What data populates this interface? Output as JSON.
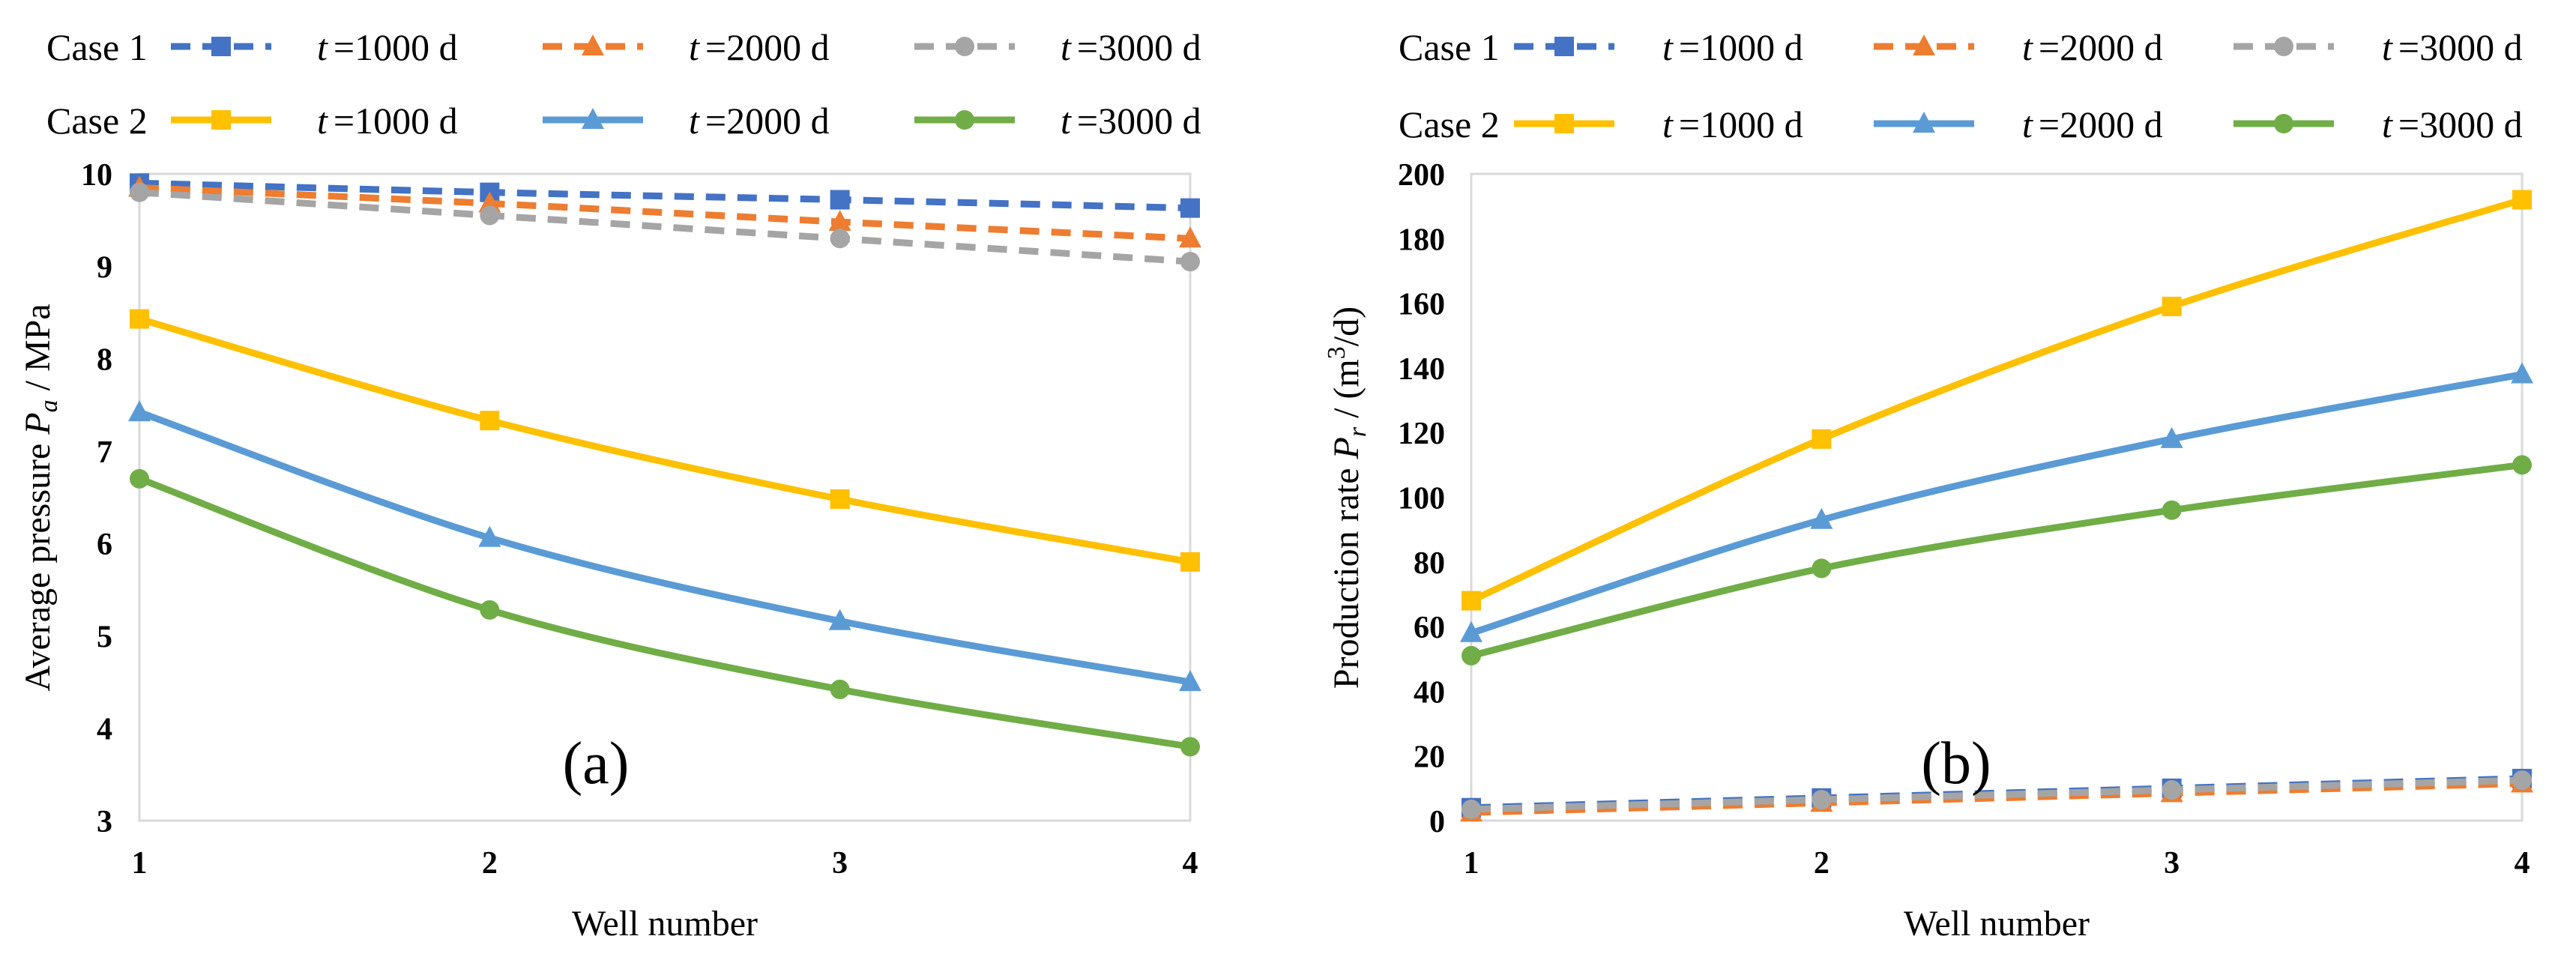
{
  "chart_data": [
    {
      "id": "a",
      "type": "line",
      "panel_label": "(a)",
      "xlabel": "Well number",
      "ylabel": {
        "prefix": "Average pressure ",
        "symbol": "P",
        "sub": "a",
        "suffix": " / MPa"
      },
      "categories": [
        "1",
        "2",
        "3",
        "4"
      ],
      "ylim": [
        3,
        10
      ],
      "yticks": [
        "3",
        "4",
        "5",
        "6",
        "7",
        "8",
        "9",
        "10"
      ],
      "legend": {
        "position": "top",
        "case_labels": [
          "Case 1",
          "Case 2"
        ],
        "time_prefix": "t",
        "time_suffixes": [
          "=1000 d",
          "=2000 d",
          "=3000 d"
        ]
      },
      "series": [
        {
          "name": "Case 1, t =1000 d",
          "case": 1,
          "time": 0,
          "marker": "square",
          "dash": true,
          "color": "#4472C4",
          "values": [
            9.9,
            9.8,
            9.72,
            9.63
          ]
        },
        {
          "name": "Case 1, t =2000 d",
          "case": 1,
          "time": 1,
          "marker": "triangle",
          "dash": true,
          "color": "#ED7D31",
          "values": [
            9.85,
            9.68,
            9.48,
            9.3
          ]
        },
        {
          "name": "Case 1, t =3000 d",
          "case": 1,
          "time": 2,
          "marker": "circle",
          "dash": true,
          "color": "#A5A5A5",
          "values": [
            9.8,
            9.55,
            9.3,
            9.05
          ]
        },
        {
          "name": "Case 2, t =1000 d",
          "case": 2,
          "time": 0,
          "marker": "square",
          "dash": false,
          "color": "#FFC000",
          "values": [
            8.43,
            7.33,
            6.48,
            5.8
          ]
        },
        {
          "name": "Case 2, t =2000 d",
          "case": 2,
          "time": 1,
          "marker": "triangle",
          "dash": false,
          "color": "#5B9BD5",
          "values": [
            7.42,
            6.06,
            5.16,
            4.5
          ]
        },
        {
          "name": "Case 2, t =3000 d",
          "case": 2,
          "time": 2,
          "marker": "circle",
          "dash": false,
          "color": "#70AD47",
          "values": [
            6.7,
            5.28,
            4.42,
            3.8
          ]
        }
      ]
    },
    {
      "id": "b",
      "type": "line",
      "panel_label": "(b)",
      "xlabel": "Well number",
      "ylabel": {
        "prefix": "Production rate ",
        "symbol": "P",
        "sub": "r",
        "suffix": " / (m",
        "sup": "3",
        "tail": "/d)"
      },
      "categories": [
        "1",
        "2",
        "3",
        "4"
      ],
      "ylim": [
        0,
        200
      ],
      "yticks": [
        "0",
        "20",
        "40",
        "60",
        "80",
        "100",
        "120",
        "140",
        "160",
        "180",
        "200"
      ],
      "legend": {
        "position": "top",
        "case_labels": [
          "Case 1",
          "Case 2"
        ],
        "time_prefix": "t",
        "time_suffixes": [
          "=1000 d",
          "=2000 d",
          "=3000 d"
        ]
      },
      "series": [
        {
          "name": "Case 1, t =1000 d",
          "case": 1,
          "time": 0,
          "marker": "square",
          "dash": true,
          "color": "#4472C4",
          "values": [
            4,
            7,
            10,
            13
          ]
        },
        {
          "name": "Case 1, t =2000 d",
          "case": 1,
          "time": 1,
          "marker": "triangle",
          "dash": true,
          "color": "#ED7D31",
          "values": [
            2.5,
            5.5,
            8.5,
            11.5
          ]
        },
        {
          "name": "Case 1, t =3000 d",
          "case": 1,
          "time": 2,
          "marker": "circle",
          "dash": true,
          "color": "#A5A5A5",
          "values": [
            3.5,
            6.5,
            9.5,
            12.5
          ]
        },
        {
          "name": "Case 2, t =1000 d",
          "case": 2,
          "time": 0,
          "marker": "square",
          "dash": false,
          "color": "#FFC000",
          "values": [
            68,
            118,
            159,
            192
          ]
        },
        {
          "name": "Case 2, t =2000 d",
          "case": 2,
          "time": 1,
          "marker": "triangle",
          "dash": false,
          "color": "#5B9BD5",
          "values": [
            58,
            93,
            118,
            138
          ]
        },
        {
          "name": "Case 2, t =3000 d",
          "case": 2,
          "time": 2,
          "marker": "circle",
          "dash": false,
          "color": "#70AD47",
          "values": [
            51,
            78,
            96,
            110
          ]
        }
      ]
    }
  ]
}
